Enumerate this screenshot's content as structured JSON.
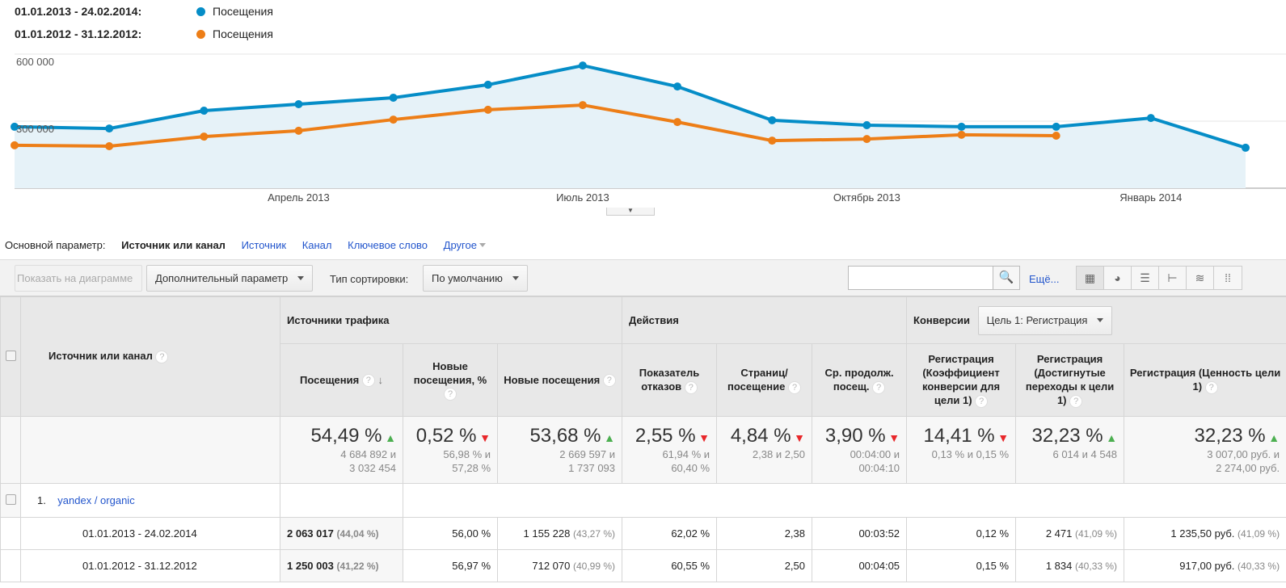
{
  "legend": [
    {
      "range": "01.01.2013 - 24.02.2014:",
      "label": "Посещения",
      "color": "#058dc7"
    },
    {
      "range": "01.01.2012 - 31.12.2012:",
      "label": "Посещения",
      "color": "#ed7e17"
    }
  ],
  "chart_data": {
    "type": "line",
    "y_ticks": [
      "600 000",
      "300 000"
    ],
    "ylim": [
      0,
      600000
    ],
    "x_labels": [
      "Апрель 2013",
      "Июль 2013",
      "Октябрь 2013",
      "Январь 2014"
    ],
    "series": [
      {
        "name": "Посещения 01.01.2013 - 24.02.2014",
        "color": "#058dc7",
        "values": [
          275000,
          267000,
          347000,
          376000,
          405000,
          463000,
          549000,
          455000,
          304000,
          282000,
          275000,
          275000,
          314000,
          181000
        ]
      },
      {
        "name": "Посещения 01.01.2012 - 31.12.2012",
        "color": "#ed7e17",
        "values": [
          192000,
          188000,
          231000,
          257000,
          307000,
          351000,
          372000,
          296000,
          213000,
          220000,
          239000,
          235000
        ]
      }
    ]
  },
  "dims": {
    "label": "Основной параметр:",
    "current": "Источник или канал",
    "links": [
      "Источник",
      "Канал",
      "Ключевое слово",
      "Другое"
    ]
  },
  "toolbar": {
    "plot": "Показать на диаграмме",
    "secondary": "Дополнительный параметр",
    "sort_label": "Тип сортировки:",
    "sort_value": "По умолчанию",
    "search_value": "",
    "more": "Ещё..."
  },
  "table": {
    "groups": {
      "traffic": "Источники трафика",
      "actions": "Действия",
      "conv": "Конверсии",
      "goal": "Цель 1: Регистрация"
    },
    "dim_header": "Источник или канал",
    "headers": [
      "Посещения",
      "Новые посещения, %",
      "Новые посещения",
      "Показатель отказов",
      "Страниц/ посещение",
      "Ср. продолж. посещ.",
      "Регистрация (Коэффициент конверсии для цели 1)",
      "Регистрация (Достигнутые переходы к цели 1)",
      "Регистрация (Ценность цели 1)"
    ],
    "summary": [
      {
        "v": "54,49 %",
        "d": "up",
        "s": "4 684 892 и",
        "s2": "3 032 454"
      },
      {
        "v": "0,52 %",
        "d": "dn",
        "s": "56,98 % и",
        "s2": "57,28 %"
      },
      {
        "v": "53,68 %",
        "d": "up",
        "s": "2 669 597 и",
        "s2": "1 737 093"
      },
      {
        "v": "2,55 %",
        "d": "dn",
        "s": "61,94 % и",
        "s2": "60,40 %"
      },
      {
        "v": "4,84 %",
        "d": "dn",
        "s": "2,38 и 2,50",
        "s2": ""
      },
      {
        "v": "3,90 %",
        "d": "dn",
        "s": "00:04:00 и",
        "s2": "00:04:10"
      },
      {
        "v": "14,41 %",
        "d": "dn",
        "s": "0,13 % и 0,15 %",
        "s2": ""
      },
      {
        "v": "32,23 %",
        "d": "up",
        "s": "6 014 и 4 548",
        "s2": ""
      },
      {
        "v": "32,23 %",
        "d": "up",
        "s": "3 007,00 руб. и",
        "s2": "2 274,00 руб."
      }
    ],
    "row": {
      "num": "1.",
      "name": "yandex / organic"
    },
    "periods": [
      {
        "label": "01.01.2013 - 24.02.2014",
        "cells": [
          [
            "2 063 017",
            "(44,04 %)"
          ],
          [
            "56,00 %",
            ""
          ],
          [
            "1 155 228",
            "(43,27 %)"
          ],
          [
            "62,02 %",
            ""
          ],
          [
            "2,38",
            ""
          ],
          [
            "00:03:52",
            ""
          ],
          [
            "0,12 %",
            ""
          ],
          [
            "2 471",
            "(41,09 %)"
          ],
          [
            "1 235,50 руб.",
            "(41,09 %)"
          ]
        ]
      },
      {
        "label": "01.01.2012 - 31.12.2012",
        "cells": [
          [
            "1 250 003",
            "(41,22 %)"
          ],
          [
            "56,97 %",
            ""
          ],
          [
            "712 070",
            "(40,99 %)"
          ],
          [
            "60,55 %",
            ""
          ],
          [
            "2,50",
            ""
          ],
          [
            "00:04:05",
            ""
          ],
          [
            "0,15 %",
            ""
          ],
          [
            "1 834",
            "(40,33 %)"
          ],
          [
            "917,00 руб.",
            "(40,33 %)"
          ]
        ]
      }
    ]
  }
}
